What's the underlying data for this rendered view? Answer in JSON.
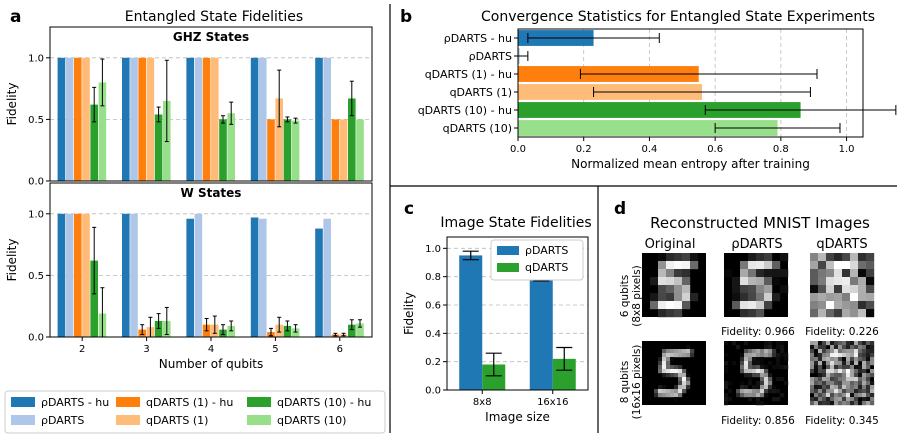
{
  "panel_labels": [
    "a",
    "b",
    "c",
    "d"
  ],
  "chart_data": [
    {
      "id": "a_ghz",
      "type": "bar",
      "title": "Entangled State Fidelities",
      "subtitle": "GHZ States",
      "xlabel": "",
      "ylabel": "Fidelity",
      "ylim": [
        0,
        1.25
      ],
      "yticks": [
        0.0,
        0.5,
        1.0
      ],
      "grid": true,
      "categories": [
        "2",
        "3",
        "4",
        "5",
        "6"
      ],
      "series": [
        {
          "name": "ρDARTS - hu",
          "color": "#1f77b4",
          "values": [
            1.0,
            1.0,
            1.0,
            1.0,
            1.0
          ],
          "errors": [
            0,
            0,
            0,
            0,
            0
          ]
        },
        {
          "name": "ρDARTS",
          "color": "#aec7e8",
          "values": [
            1.0,
            1.0,
            1.0,
            1.0,
            1.0
          ],
          "errors": [
            0,
            0,
            0,
            0,
            0
          ]
        },
        {
          "name": "qDARTS (1) - hu",
          "color": "#ff7f0e",
          "values": [
            1.0,
            1.0,
            1.0,
            0.5,
            0.5
          ],
          "errors": [
            0,
            0,
            0,
            0,
            0
          ]
        },
        {
          "name": "qDARTS (1)",
          "color": "#ffbb78",
          "values": [
            1.0,
            1.0,
            1.0,
            0.67,
            0.5
          ],
          "errors": [
            0,
            0,
            0,
            0.23,
            0
          ]
        },
        {
          "name": "qDARTS (10) - hu",
          "color": "#2ca02c",
          "values": [
            0.62,
            0.54,
            0.5,
            0.5,
            0.67
          ],
          "errors": [
            0.14,
            0.06,
            0.03,
            0.02,
            0.14
          ]
        },
        {
          "name": "qDARTS (10)",
          "color": "#98df8a",
          "values": [
            0.8,
            0.65,
            0.55,
            0.49,
            0.5
          ],
          "errors": [
            0.19,
            0.33,
            0.09,
            0.02,
            0
          ]
        }
      ]
    },
    {
      "id": "a_w",
      "type": "bar",
      "title": "",
      "subtitle": "W States",
      "xlabel": "Number of qubits",
      "ylabel": "Fidelity",
      "ylim": [
        0,
        1.25
      ],
      "yticks": [
        0.0,
        0.5,
        1.0
      ],
      "grid": true,
      "categories": [
        "2",
        "3",
        "4",
        "5",
        "6"
      ],
      "series": [
        {
          "name": "ρDARTS - hu",
          "color": "#1f77b4",
          "values": [
            1.0,
            1.0,
            0.96,
            0.97,
            0.88
          ],
          "errors": [
            0,
            0,
            0,
            0,
            0
          ]
        },
        {
          "name": "ρDARTS",
          "color": "#aec7e8",
          "values": [
            1.0,
            1.0,
            1.0,
            0.96,
            0.96
          ],
          "errors": [
            0,
            0,
            0,
            0,
            0
          ]
        },
        {
          "name": "qDARTS (1) - hu",
          "color": "#ff7f0e",
          "values": [
            1.0,
            0.06,
            0.1,
            0.04,
            0.02
          ],
          "errors": [
            0,
            0.04,
            0.05,
            0.03,
            0.01
          ]
        },
        {
          "name": "qDARTS (1)",
          "color": "#ffbb78",
          "values": [
            1.0,
            0.08,
            0.1,
            0.1,
            0.02
          ],
          "errors": [
            0,
            0.08,
            0.07,
            0.06,
            0.01
          ]
        },
        {
          "name": "qDARTS (10) - hu",
          "color": "#2ca02c",
          "values": [
            0.62,
            0.13,
            0.06,
            0.09,
            0.1
          ],
          "errors": [
            0.27,
            0.06,
            0.04,
            0.04,
            0.04
          ]
        },
        {
          "name": "qDARTS (10)",
          "color": "#98df8a",
          "values": [
            0.19,
            0.13,
            0.09,
            0.07,
            0.11
          ],
          "errors": [
            0.21,
            0.11,
            0.04,
            0.03,
            0.03
          ]
        }
      ]
    },
    {
      "id": "b",
      "type": "bar",
      "orientation": "horizontal",
      "title": "Convergence Statistics for Entangled State Experiments",
      "xlabel": "Normalized mean entropy after training",
      "ylabel": "",
      "xlim": [
        0,
        1.05
      ],
      "xticks": [
        0.0,
        0.2,
        0.4,
        0.6,
        0.8,
        1.0
      ],
      "grid": true,
      "categories": [
        "ρDARTS - hu",
        "ρDARTS",
        "qDARTS (1) - hu",
        "qDARTS (1)",
        "qDARTS (10) - hu",
        "qDARTS (10)"
      ],
      "colors": [
        "#1f77b4",
        "#aec7e8",
        "#ff7f0e",
        "#ffbb78",
        "#2ca02c",
        "#98df8a"
      ],
      "values": [
        0.23,
        0.005,
        0.55,
        0.56,
        0.86,
        0.79
      ],
      "errors": [
        0.2,
        0.025,
        0.36,
        0.33,
        0.29,
        0.19
      ]
    },
    {
      "id": "c",
      "type": "bar",
      "title": "Image State Fidelities",
      "xlabel": "Image size",
      "ylabel": "Fidelity",
      "ylim": [
        0,
        1.08
      ],
      "yticks": [
        0.0,
        0.2,
        0.4,
        0.6,
        0.8,
        1.0
      ],
      "grid": true,
      "legend": "top-right",
      "categories": [
        "8x8",
        "16x16"
      ],
      "series": [
        {
          "name": "ρDARTS",
          "color": "#1f77b4",
          "values": [
            0.95,
            0.8
          ],
          "errors": [
            0.03,
            0.03
          ]
        },
        {
          "name": "qDARTS",
          "color": "#2ca02c",
          "values": [
            0.18,
            0.22
          ],
          "errors": [
            0.08,
            0.08
          ]
        }
      ]
    }
  ],
  "legend_a": {
    "items": [
      {
        "label": "ρDARTS - hu",
        "color": "#1f77b4"
      },
      {
        "label": "ρDARTS",
        "color": "#aec7e8"
      },
      {
        "label": "qDARTS (1) - hu",
        "color": "#ff7f0e"
      },
      {
        "label": "qDARTS (1)",
        "color": "#ffbb78"
      },
      {
        "label": "qDARTS (10) - hu",
        "color": "#2ca02c"
      },
      {
        "label": "qDARTS (10)",
        "color": "#98df8a"
      }
    ]
  },
  "panel_d": {
    "title": "Reconstructed MNIST Images",
    "columns": [
      "Original",
      "ρDARTS",
      "qDARTS"
    ],
    "rows": [
      {
        "label_line1": "6 qubits",
        "label_line2": "(8x8 pixels)",
        "fidelities": [
          "Fidelity: 0.966",
          "Fidelity: 0.226"
        ]
      },
      {
        "label_line1": "8 qubits",
        "label_line2": "(16x16 pixels)",
        "fidelities": [
          "Fidelity: 0.856",
          "Fidelity: 0.345"
        ]
      }
    ]
  }
}
